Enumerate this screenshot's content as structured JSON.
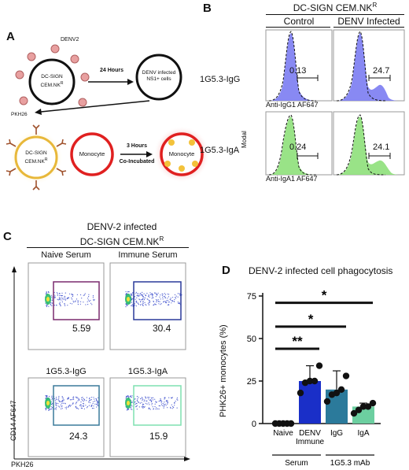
{
  "panels": {
    "A": {
      "letter": "A",
      "denv_label": "DENV2",
      "cell1_label_line1": "DC-SIGN",
      "cell1_label_line2": "CEM.NK",
      "cell1_label_sup": "R",
      "arrow_label": "24 Hours",
      "cell2_label_line1": "DENV infected",
      "cell2_label_line2": "NS1+ cells",
      "pkh_label": "PKH26",
      "cell3_label_line1": "DC-SIGN",
      "cell3_label_line2": "CEM.NK",
      "cell3_label_sup": "R",
      "monocyte_label": "Monocyte",
      "arrow2_top": "3 Hours",
      "arrow2_bottom": "Co-Incubated",
      "monocyte2_label": "Monocyte"
    },
    "B": {
      "letter": "B",
      "title": "DC-SIGN CEM.NK",
      "title_sup": "R",
      "col_control": "Control",
      "col_infected": "DENV Infected",
      "row1_label": "1G5.3-IgG",
      "row2_label": "1G5.3-IgA",
      "row1_values": [
        "0.13",
        "24.7"
      ],
      "row2_values": [
        "0.24",
        "24.1"
      ],
      "row1_xlabel": "Anti-IgG1 AF647",
      "row2_xlabel": "Anti-IgA1 AF647",
      "ylabel": "Modal",
      "colors": {
        "igg": "#7b7cf2",
        "iga": "#8ee07a"
      }
    },
    "C": {
      "letter": "C",
      "title_line1": "DENV-2 infected",
      "title_line2": "DC-SIGN CEM.NK",
      "title_sup": "R",
      "top_labels": [
        "Naive Serum",
        "Immune Serum"
      ],
      "bottom_labels": [
        "1G5.3-IgG",
        "1G5.3-IgA"
      ],
      "values": [
        "5.59",
        "30.4",
        "24.3",
        "15.9"
      ],
      "xlabel": "PKH26",
      "ylabel": "CD14 AF647",
      "gate_colors": [
        "#7a2a6e",
        "#2a3a9a",
        "#3a7a9a",
        "#7fe0b0"
      ]
    }
  },
  "chart_data": {
    "panel": "D",
    "type": "bar",
    "title": "DENV-2 infected cell phagocytosis",
    "categories": [
      "Naive",
      "DENV Immune",
      "IgG",
      "IgA"
    ],
    "category_display": [
      [
        "Naive"
      ],
      [
        "DENV",
        "Immune"
      ],
      [
        "IgG"
      ],
      [
        "IgA"
      ]
    ],
    "group_labels": [
      "Serum",
      "1G5.3 mAb"
    ],
    "values": [
      0,
      25,
      20,
      10
    ],
    "errors": [
      0,
      9,
      11,
      2
    ],
    "points": [
      [
        0,
        0,
        0,
        0,
        0
      ],
      [
        18,
        24,
        25,
        25,
        34
      ],
      [
        13,
        17,
        18,
        20,
        28
      ],
      [
        6,
        8,
        10,
        10,
        12
      ]
    ],
    "colors": [
      "#1a1a1a",
      "#1a2fc8",
      "#2b7a9b",
      "#6ccfa0"
    ],
    "ylabel": "PHK26+ monocytes (%)",
    "yticks": [
      "0",
      "25",
      "50",
      "75"
    ],
    "ylim": [
      0,
      75
    ],
    "significance": [
      {
        "from": 0,
        "to": 1,
        "label": "**"
      },
      {
        "from": 0,
        "to": 2,
        "label": "*"
      },
      {
        "from": 0,
        "to": 3,
        "label": "*"
      }
    ]
  }
}
